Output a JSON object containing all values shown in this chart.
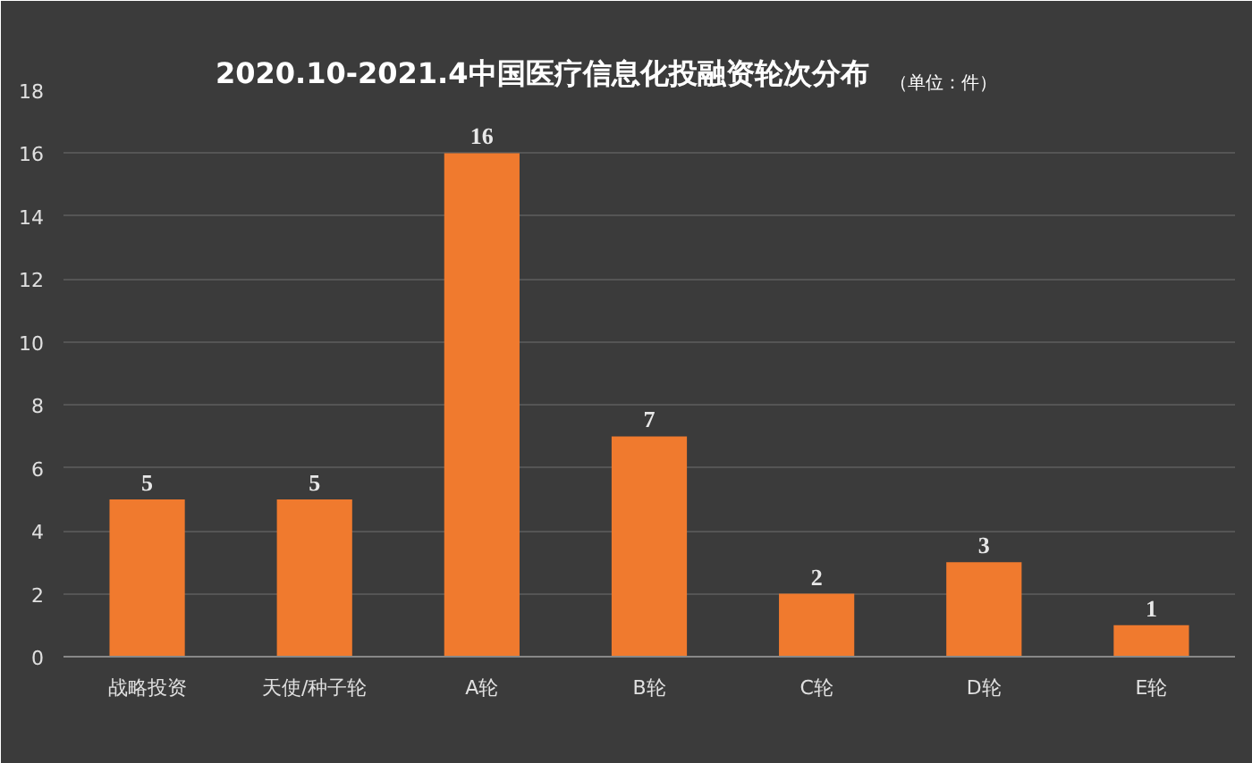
{
  "chart_data": {
    "type": "bar",
    "title": "2020.10-2021.4中国医疗信息化投融资轮次分布",
    "subtitle": "（单位：件）",
    "categories": [
      "战略投资",
      "天使/种子轮",
      "A轮",
      "B轮",
      "C轮",
      "D轮",
      "E轮"
    ],
    "values": [
      5,
      5,
      16,
      7,
      2,
      3,
      1
    ],
    "color": "#f07a2e",
    "ylim": [
      0,
      18
    ],
    "yticks": [
      0,
      2,
      4,
      6,
      8,
      10,
      12,
      14,
      16,
      18
    ],
    "grid": "y",
    "data_labels": true
  }
}
